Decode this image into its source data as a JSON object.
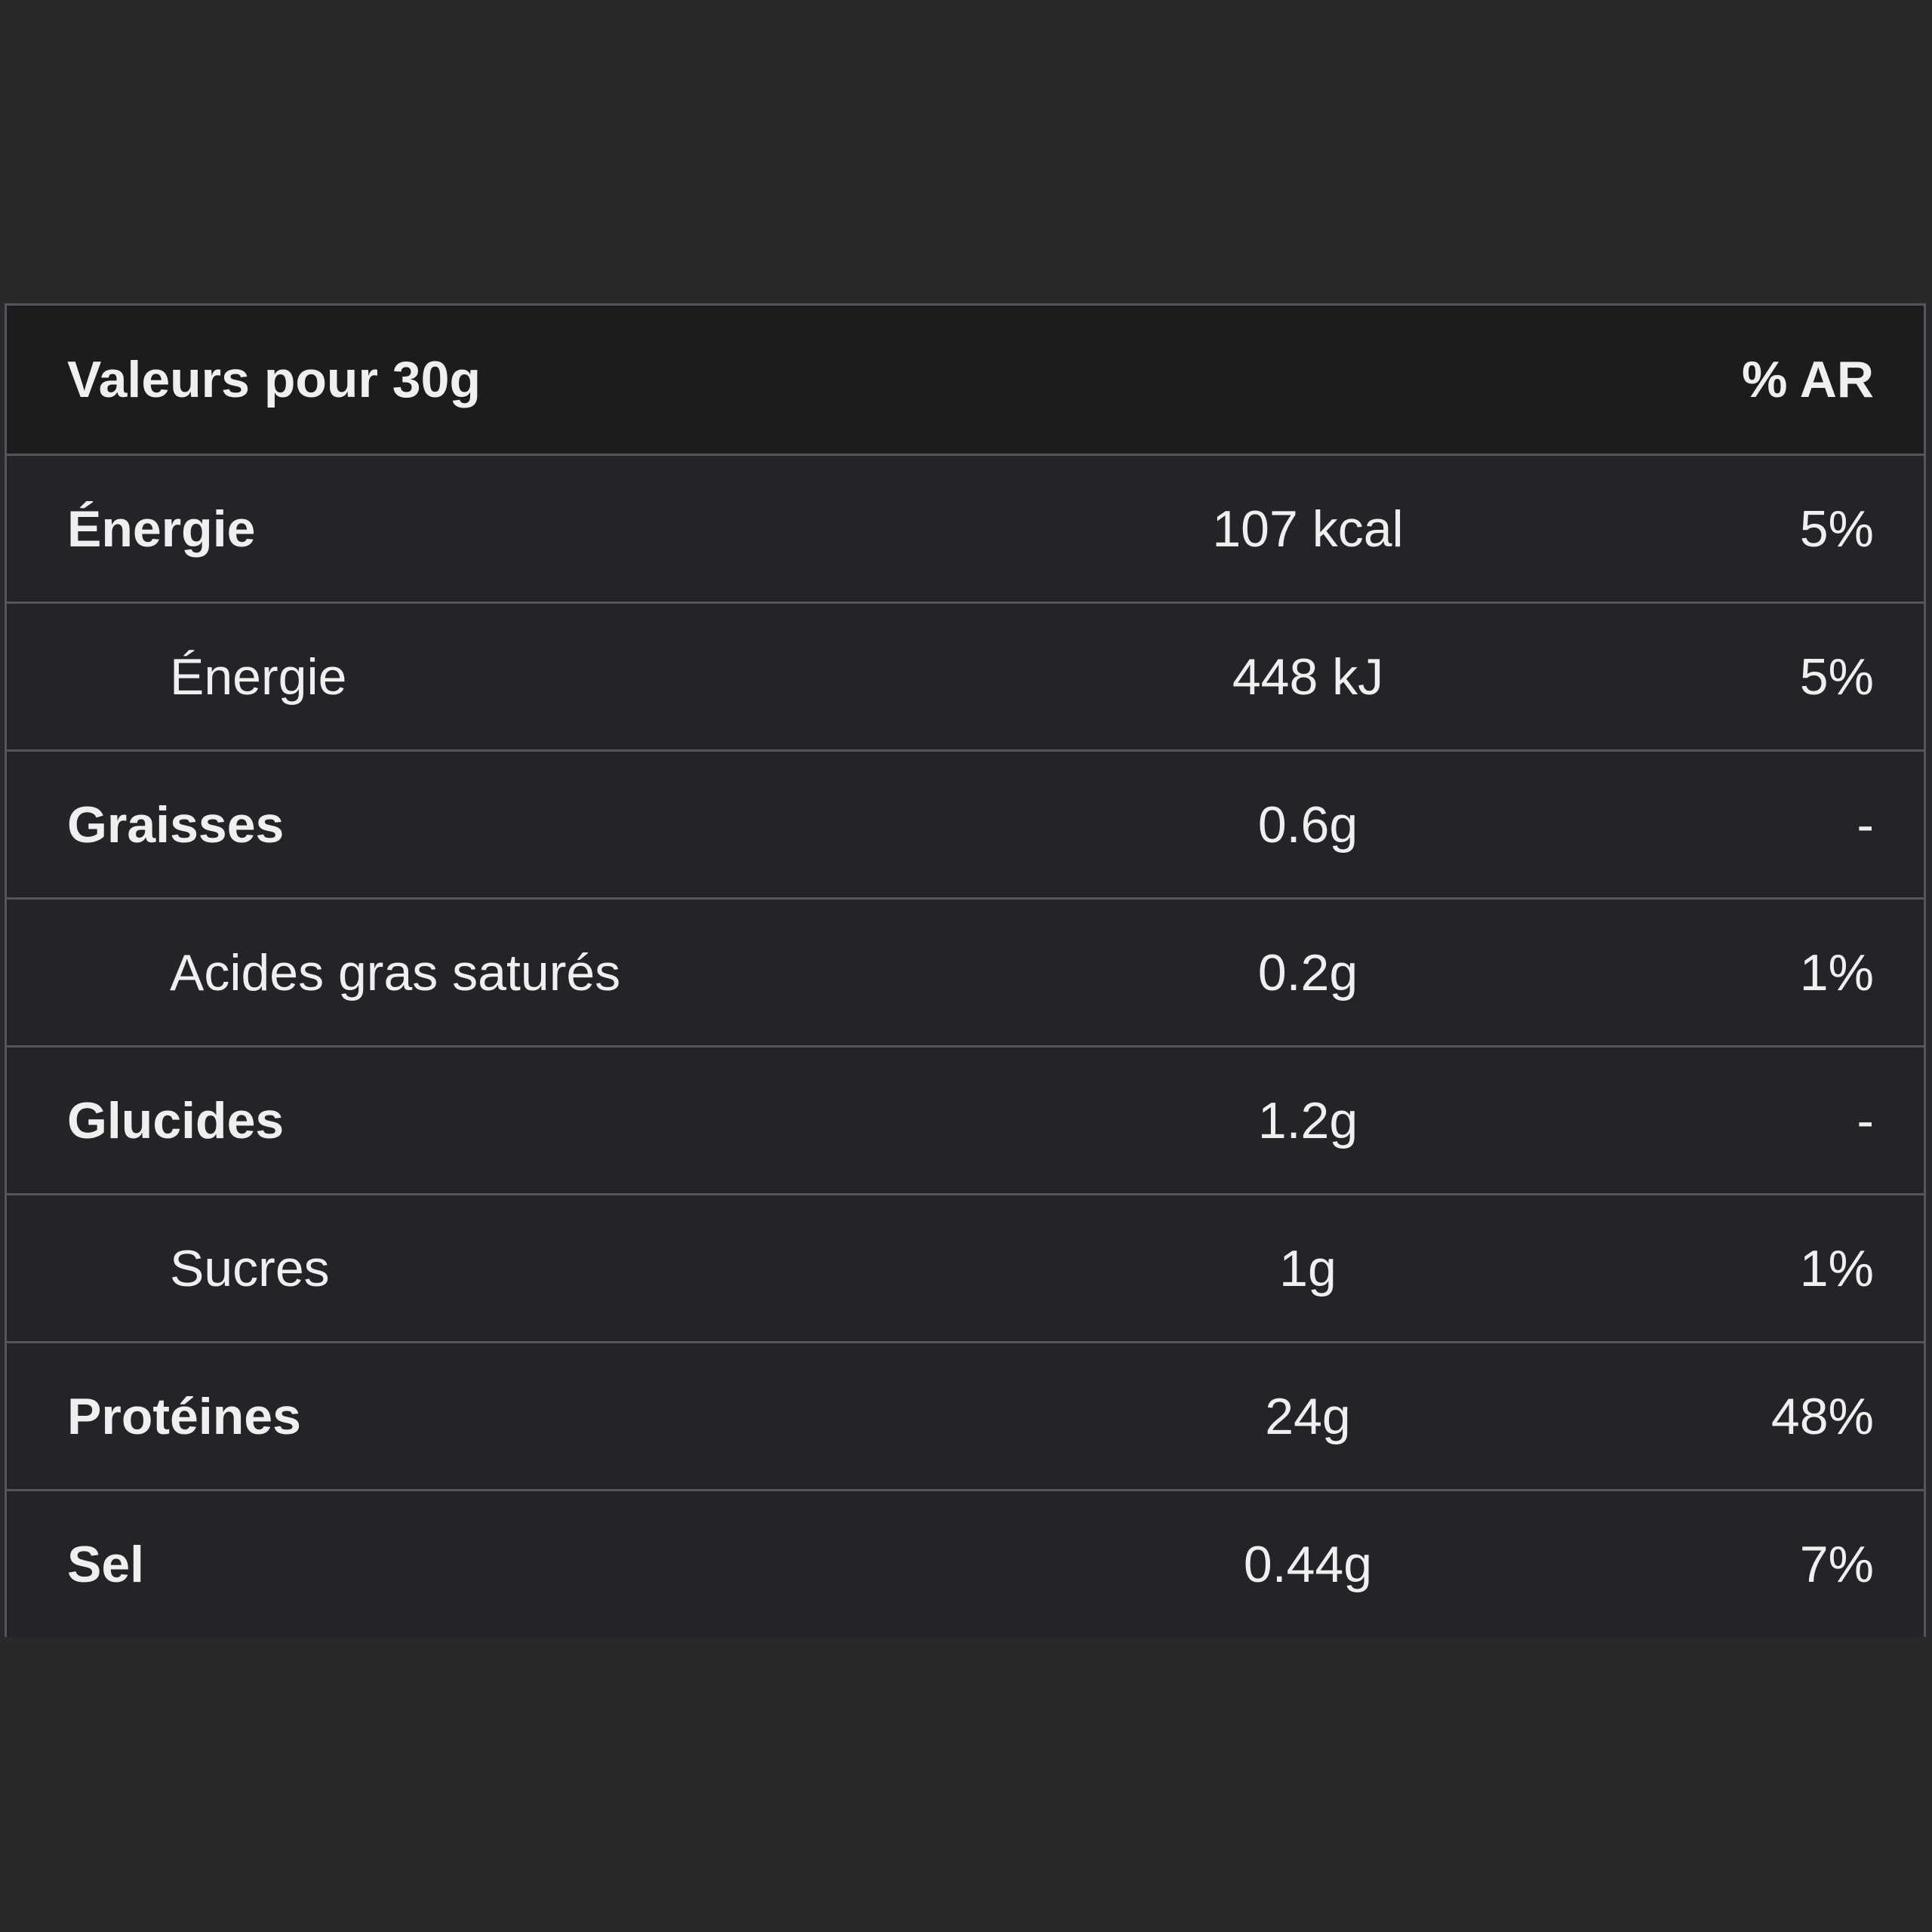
{
  "page": {
    "background": "#29292C"
  },
  "table": {
    "header": {
      "label": "Valeurs pour 30g",
      "ar_label": "% AR"
    },
    "rows": [
      {
        "label": "Énergie",
        "value": "107 kcal",
        "ar": "5%",
        "style": "bold"
      },
      {
        "label": "Énergie",
        "value": "448 kJ",
        "ar": "5%",
        "style": "sub"
      },
      {
        "label": "Graisses",
        "value": "0.6g",
        "ar": "-",
        "style": "bold"
      },
      {
        "label": "Acides gras saturés",
        "value": "0.2g",
        "ar": "1%",
        "style": "sub"
      },
      {
        "label": "Glucides",
        "value": "1.2g",
        "ar": "-",
        "style": "bold"
      },
      {
        "label": "Sucres",
        "value": "1g",
        "ar": "1%",
        "style": "sub"
      },
      {
        "label": "Protéines",
        "value": "24g",
        "ar": "48%",
        "style": "bold"
      },
      {
        "label": "Sel",
        "value": "0.44g",
        "ar": "7%",
        "style": "bold"
      }
    ],
    "colors": {
      "page_bg": "#29292C",
      "header_bg": "#1C1C1F",
      "row_bg": "#242428",
      "border": "#55565B",
      "text": "#EFEFEF"
    }
  }
}
